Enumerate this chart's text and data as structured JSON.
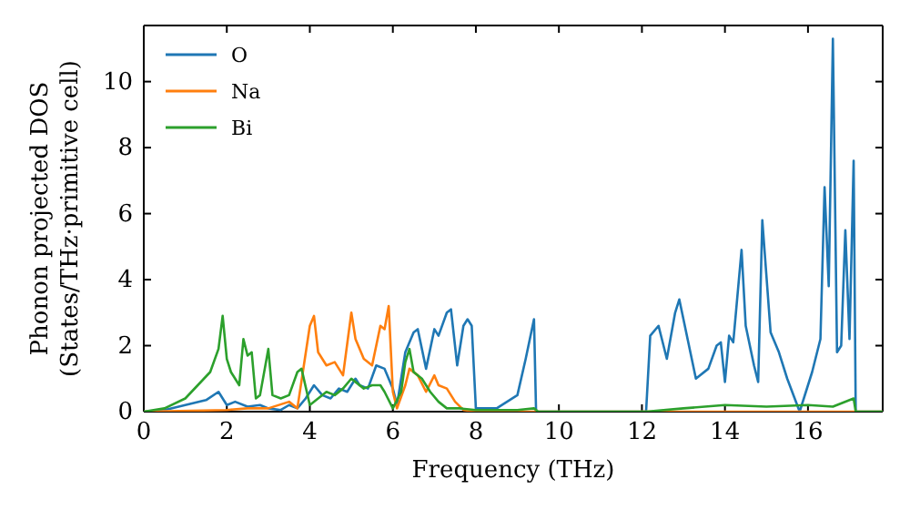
{
  "chart_data": {
    "type": "line",
    "xlabel": "Frequency (THz)",
    "ylabel": "Phonon projected DOS\n(States/THz·primitive cell)",
    "xlim": [
      0,
      17.8
    ],
    "ylim": [
      0,
      11.7
    ],
    "xticks": [
      0,
      2,
      4,
      6,
      8,
      10,
      12,
      14,
      16
    ],
    "yticks": [
      0,
      2,
      4,
      6,
      8,
      10
    ],
    "legend": "top left",
    "grid": false,
    "series": [
      {
        "name": "O",
        "color": "#1f77b4",
        "x": [
          0,
          0.5,
          1,
          1.5,
          1.8,
          2,
          2.2,
          2.5,
          2.8,
          3,
          3.3,
          3.5,
          3.7,
          3.9,
          4.1,
          4.3,
          4.5,
          4.7,
          4.9,
          5.1,
          5.2,
          5.4,
          5.6,
          5.8,
          6,
          6.1,
          6.3,
          6.5,
          6.6,
          6.8,
          7,
          7.1,
          7.3,
          7.4,
          7.55,
          7.7,
          7.8,
          7.9,
          8,
          8.5,
          9,
          9.2,
          9.4,
          9.45,
          12.1,
          12.2,
          12.4,
          12.6,
          12.8,
          12.9,
          13.1,
          13.3,
          13.6,
          13.8,
          13.9,
          14,
          14.1,
          14.2,
          14.4,
          14.5,
          14.7,
          14.8,
          14.9,
          15.1,
          15.3,
          15.5,
          15.8,
          16.1,
          16.3,
          16.4,
          16.5,
          16.6,
          16.7,
          16.8,
          16.9,
          17,
          17.1,
          17.15,
          17.8
        ],
        "values": [
          0,
          0.05,
          0.2,
          0.35,
          0.6,
          0.2,
          0.3,
          0.15,
          0.2,
          0.1,
          0.05,
          0.2,
          0.1,
          0.4,
          0.8,
          0.5,
          0.4,
          0.7,
          0.6,
          1,
          0.8,
          0.7,
          1.4,
          1.3,
          0.7,
          0.2,
          1.8,
          2.4,
          2.5,
          1.3,
          2.5,
          2.3,
          3,
          3.1,
          1.4,
          2.6,
          2.8,
          2.6,
          0.1,
          0.1,
          0.5,
          1.6,
          2.8,
          0,
          0,
          2.3,
          2.6,
          1.6,
          3,
          3.4,
          2.2,
          1,
          1.3,
          2,
          2.1,
          0.9,
          2.3,
          2.1,
          4.9,
          2.6,
          1.4,
          0.9,
          5.8,
          2.4,
          1.8,
          1,
          0,
          1.2,
          2.2,
          6.8,
          3.8,
          11.3,
          1.8,
          2,
          5.5,
          2.2,
          7.6,
          0,
          0
        ]
      },
      {
        "name": "Na",
        "color": "#ff7f0e",
        "x": [
          0,
          2,
          2.5,
          3,
          3.5,
          3.7,
          4,
          4.1,
          4.2,
          4.4,
          4.6,
          4.8,
          5,
          5.1,
          5.3,
          5.5,
          5.7,
          5.8,
          5.9,
          6,
          6.1,
          6.3,
          6.4,
          6.6,
          6.8,
          7,
          7.1,
          7.3,
          7.5,
          7.7,
          8,
          17.8
        ],
        "values": [
          0,
          0.05,
          0.1,
          0.1,
          0.3,
          0.1,
          2.6,
          2.9,
          1.8,
          1.4,
          1.5,
          1.1,
          3,
          2.2,
          1.6,
          1.4,
          2.6,
          2.5,
          3.2,
          0.6,
          0.1,
          0.8,
          1.3,
          1.1,
          0.6,
          1.1,
          0.8,
          0.7,
          0.3,
          0.05,
          0,
          0
        ]
      },
      {
        "name": "Bi",
        "color": "#2ca02c",
        "x": [
          0,
          0.5,
          1,
          1.3,
          1.6,
          1.8,
          1.9,
          2,
          2.1,
          2.3,
          2.4,
          2.5,
          2.6,
          2.7,
          2.8,
          3,
          3.1,
          3.3,
          3.5,
          3.7,
          3.8,
          4,
          4.2,
          4.4,
          4.6,
          4.8,
          5,
          5.1,
          5.3,
          5.5,
          5.7,
          5.8,
          6,
          6.2,
          6.3,
          6.4,
          6.5,
          6.7,
          6.9,
          7.1,
          7.3,
          7.6,
          8,
          9,
          9.4,
          9.5,
          12.1,
          13,
          14,
          15,
          16,
          16.6,
          17.1,
          17.15,
          17.8
        ],
        "values": [
          0,
          0.1,
          0.4,
          0.8,
          1.2,
          1.9,
          2.9,
          1.6,
          1.2,
          0.8,
          2.2,
          1.7,
          1.8,
          0.4,
          0.5,
          1.9,
          0.5,
          0.4,
          0.5,
          1.2,
          1.3,
          0.2,
          0.4,
          0.6,
          0.5,
          0.7,
          1,
          0.9,
          0.7,
          0.8,
          0.8,
          0.6,
          0.1,
          0.6,
          1.5,
          1.9,
          1.2,
          1,
          0.6,
          0.3,
          0.1,
          0.1,
          0.05,
          0.05,
          0.1,
          0,
          0,
          0.1,
          0.2,
          0.15,
          0.2,
          0.15,
          0.4,
          0,
          0
        ]
      }
    ]
  }
}
